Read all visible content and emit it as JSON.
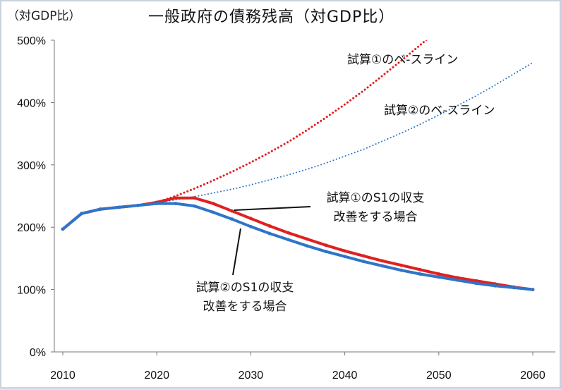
{
  "chart_data": {
    "type": "line",
    "title": "一般政府の債務残高（対GDP比）",
    "unit_label": "（対GDP比）",
    "x_ticks": [
      "2010",
      "2020",
      "2030",
      "2040",
      "2050",
      "2060"
    ],
    "y_ticks": [
      "0%",
      "100%",
      "200%",
      "300%",
      "400%",
      "500%"
    ],
    "xlim": [
      2010,
      2060
    ],
    "ylim": [
      0,
      500
    ],
    "grid": false,
    "series": [
      {
        "name": "試算①のベースライン",
        "style": "dotted",
        "color": "#e02020",
        "x": [
          2010,
          2012,
          2014,
          2016,
          2018,
          2020,
          2022,
          2024,
          2026,
          2028,
          2030,
          2032,
          2034,
          2036,
          2038,
          2040,
          2042,
          2044,
          2046,
          2048,
          2050,
          2052
        ],
        "values": [
          197,
          222,
          229,
          232,
          235,
          240,
          250,
          262,
          275,
          289,
          304,
          320,
          337,
          356,
          376,
          397,
          419,
          443,
          467,
          492,
          518,
          545
        ]
      },
      {
        "name": "試算②のベースライン",
        "style": "dotted",
        "color": "#2e75c8",
        "x": [
          2010,
          2012,
          2014,
          2016,
          2018,
          2020,
          2022,
          2024,
          2026,
          2028,
          2030,
          2032,
          2034,
          2036,
          2038,
          2040,
          2042,
          2044,
          2046,
          2048,
          2050,
          2052,
          2054,
          2056,
          2058,
          2060
        ],
        "values": [
          197,
          222,
          229,
          232,
          235,
          239,
          244,
          249,
          255,
          261,
          268,
          276,
          284,
          293,
          303,
          314,
          325,
          338,
          351,
          365,
          380,
          395,
          411,
          428,
          446,
          464
        ]
      },
      {
        "name": "試算①のS1の収支改善をする場合",
        "style": "solid",
        "color": "#e02020",
        "x": [
          2010,
          2012,
          2014,
          2016,
          2018,
          2020,
          2022,
          2024,
          2026,
          2028,
          2030,
          2032,
          2034,
          2036,
          2038,
          2040,
          2042,
          2044,
          2046,
          2048,
          2050,
          2052,
          2054,
          2056,
          2058,
          2060
        ],
        "values": [
          197,
          222,
          229,
          232,
          235,
          240,
          247,
          247,
          238,
          226,
          214,
          202,
          191,
          181,
          171,
          162,
          154,
          146,
          139,
          132,
          125,
          119,
          114,
          109,
          104,
          100
        ]
      },
      {
        "name": "試算②のS1の収支改善をする場合",
        "style": "solid",
        "color": "#2e75c8",
        "x": [
          2010,
          2012,
          2014,
          2016,
          2018,
          2020,
          2022,
          2024,
          2026,
          2028,
          2030,
          2032,
          2034,
          2036,
          2038,
          2040,
          2042,
          2044,
          2046,
          2048,
          2050,
          2052,
          2054,
          2056,
          2058,
          2060
        ],
        "values": [
          197,
          222,
          229,
          232,
          235,
          238,
          238,
          234,
          224,
          213,
          201,
          190,
          180,
          170,
          161,
          153,
          145,
          138,
          131,
          125,
          120,
          115,
          110,
          106,
          103,
          100
        ]
      }
    ],
    "annotations": [
      {
        "lines": [
          "試算①のベ-スライン"
        ],
        "series": 0
      },
      {
        "lines": [
          "試算②のベ-スライン"
        ],
        "series": 1
      },
      {
        "lines": [
          "試算①のS1の収支",
          "改善をする場合"
        ],
        "series": 2
      },
      {
        "lines": [
          "試算②のS1の収支",
          "改善をする場合"
        ],
        "series": 3
      }
    ]
  }
}
